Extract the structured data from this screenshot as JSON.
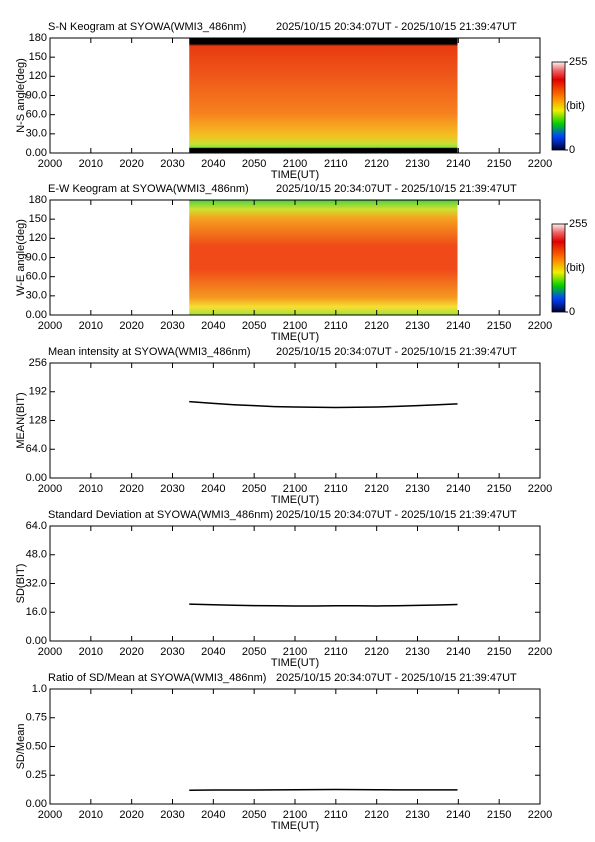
{
  "chart_data": [
    {
      "type": "keogram",
      "title": "S-N Keogram at SYOWA(WMI3_486nm)",
      "subtitle": "2025/10/15 20:34:07UT - 2025/10/15 21:39:47UT",
      "xlabel": "TIME(UT)",
      "ylabel": "N-S angle(deg)",
      "xlim": [
        1200,
        1320
      ],
      "xticks": [
        {
          "value": 1200,
          "label": "2000"
        },
        {
          "value": 1210,
          "label": "2010"
        },
        {
          "value": 1220,
          "label": "2020"
        },
        {
          "value": 1230,
          "label": "2030"
        },
        {
          "value": 1240,
          "label": "2040"
        },
        {
          "value": 1250,
          "label": "2050"
        },
        {
          "value": 1260,
          "label": "2100"
        },
        {
          "value": 1270,
          "label": "2110"
        },
        {
          "value": 1280,
          "label": "2120"
        },
        {
          "value": 1290,
          "label": "2130"
        },
        {
          "value": 1300,
          "label": "2140"
        },
        {
          "value": 1310,
          "label": "2150"
        },
        {
          "value": 1320,
          "label": "2200"
        }
      ],
      "ylim": [
        0,
        180
      ],
      "yticks": [
        {
          "value": 0,
          "label": "0.00"
        },
        {
          "value": 30,
          "label": "30.0"
        },
        {
          "value": 60,
          "label": "60.0"
        },
        {
          "value": 90,
          "label": "90.0"
        },
        120,
        150,
        180
      ],
      "x": [
        1234.1,
        1299.8
      ],
      "colorbar": {
        "lim": [
          0,
          255
        ],
        "ticks": [
          0,
          255
        ],
        "label": "(bit)"
      }
    },
    {
      "type": "keogram",
      "title": "E-W Keogram at SYOWA(WMI3_486nm)",
      "subtitle": "2025/10/15 20:34:07UT - 2025/10/15 21:39:47UT",
      "xlabel": "TIME(UT)",
      "ylabel": "W-E angle(deg)",
      "xlim": [
        1200,
        1320
      ],
      "xticks": [
        {
          "value": 1200,
          "label": "2000"
        },
        {
          "value": 1210,
          "label": "2010"
        },
        {
          "value": 1220,
          "label": "2020"
        },
        {
          "value": 1230,
          "label": "2030"
        },
        {
          "value": 1240,
          "label": "2040"
        },
        {
          "value": 1250,
          "label": "2050"
        },
        {
          "value": 1260,
          "label": "2100"
        },
        {
          "value": 1270,
          "label": "2110"
        },
        {
          "value": 1280,
          "label": "2120"
        },
        {
          "value": 1290,
          "label": "2130"
        },
        {
          "value": 1300,
          "label": "2140"
        },
        {
          "value": 1310,
          "label": "2150"
        },
        {
          "value": 1320,
          "label": "2200"
        }
      ],
      "ylim": [
        0,
        180
      ],
      "yticks": [
        {
          "value": 0,
          "label": "0.00"
        },
        {
          "value": 30,
          "label": "30.0"
        },
        {
          "value": 60,
          "label": "60.0"
        },
        {
          "value": 90,
          "label": "90.0"
        },
        120,
        150,
        180
      ],
      "x": [
        1234.1,
        1299.8
      ],
      "colorbar": {
        "lim": [
          0,
          255
        ],
        "ticks": [
          0,
          255
        ],
        "label": "(bit)"
      }
    },
    {
      "type": "line",
      "title": "Mean intensity at SYOWA(WMI3_486nm)",
      "subtitle": "2025/10/15 20:34:07UT - 2025/10/15 21:39:47UT",
      "xlabel": "TIME(UT)",
      "ylabel": "MEAN(BIT)",
      "xlim": [
        1200,
        1320
      ],
      "xticks": [
        {
          "value": 1200,
          "label": "2000"
        },
        {
          "value": 1210,
          "label": "2010"
        },
        {
          "value": 1220,
          "label": "2020"
        },
        {
          "value": 1230,
          "label": "2030"
        },
        {
          "value": 1240,
          "label": "2040"
        },
        {
          "value": 1250,
          "label": "2050"
        },
        {
          "value": 1260,
          "label": "2100"
        },
        {
          "value": 1270,
          "label": "2110"
        },
        {
          "value": 1280,
          "label": "2120"
        },
        {
          "value": 1290,
          "label": "2130"
        },
        {
          "value": 1300,
          "label": "2140"
        },
        {
          "value": 1310,
          "label": "2150"
        },
        {
          "value": 1320,
          "label": "2200"
        }
      ],
      "ylim": [
        0,
        256
      ],
      "yticks": [
        {
          "value": 0,
          "label": "0.00"
        },
        {
          "value": 64,
          "label": "64.0"
        },
        128,
        192,
        256
      ],
      "color": "#000000",
      "x": [
        1234.1,
        1240,
        1245,
        1250,
        1255,
        1260,
        1265,
        1270,
        1275,
        1280,
        1285,
        1290,
        1295,
        1299.8
      ],
      "values": [
        170,
        166,
        163,
        161,
        159,
        158,
        157.5,
        157,
        157.5,
        158,
        159.5,
        161,
        163,
        165
      ]
    },
    {
      "type": "line",
      "title": "Standard Deviation at SYOWA(WMI3_486nm)",
      "subtitle": "2025/10/15 20:34:07UT - 2025/10/15 21:39:47UT",
      "xlabel": "TIME(UT)",
      "ylabel": "SD(BIT)",
      "xlim": [
        1200,
        1320
      ],
      "xticks": [
        {
          "value": 1200,
          "label": "2000"
        },
        {
          "value": 1210,
          "label": "2010"
        },
        {
          "value": 1220,
          "label": "2020"
        },
        {
          "value": 1230,
          "label": "2030"
        },
        {
          "value": 1240,
          "label": "2040"
        },
        {
          "value": 1250,
          "label": "2050"
        },
        {
          "value": 1260,
          "label": "2100"
        },
        {
          "value": 1270,
          "label": "2110"
        },
        {
          "value": 1280,
          "label": "2120"
        },
        {
          "value": 1290,
          "label": "2130"
        },
        {
          "value": 1300,
          "label": "2140"
        },
        {
          "value": 1310,
          "label": "2150"
        },
        {
          "value": 1320,
          "label": "2200"
        }
      ],
      "ylim": [
        0,
        64
      ],
      "yticks": [
        {
          "value": 0,
          "label": "0.00"
        },
        {
          "value": 16,
          "label": "16.0"
        },
        {
          "value": 32,
          "label": "32.0"
        },
        {
          "value": 48,
          "label": "48.0"
        },
        {
          "value": 64,
          "label": "64.0"
        }
      ],
      "color": "#000000",
      "x": [
        1234.1,
        1240,
        1245,
        1250,
        1255,
        1260,
        1265,
        1270,
        1275,
        1280,
        1285,
        1290,
        1295,
        1299.8
      ],
      "values": [
        20.5,
        20.2,
        19.9,
        19.7,
        19.6,
        19.5,
        19.5,
        19.6,
        19.6,
        19.5,
        19.6,
        19.8,
        20.0,
        20.3
      ]
    },
    {
      "type": "line",
      "title": "Ratio of SD/Mean at SYOWA(WMI3_486nm)",
      "subtitle": "2025/10/15 20:34:07UT - 2025/10/15 21:39:47UT",
      "xlabel": "TIME(UT)",
      "ylabel": "SD/Mean",
      "xlim": [
        1200,
        1320
      ],
      "xticks": [
        {
          "value": 1200,
          "label": "2000"
        },
        {
          "value": 1210,
          "label": "2010"
        },
        {
          "value": 1220,
          "label": "2020"
        },
        {
          "value": 1230,
          "label": "2030"
        },
        {
          "value": 1240,
          "label": "2040"
        },
        {
          "value": 1250,
          "label": "2050"
        },
        {
          "value": 1260,
          "label": "2100"
        },
        {
          "value": 1270,
          "label": "2110"
        },
        {
          "value": 1280,
          "label": "2120"
        },
        {
          "value": 1290,
          "label": "2130"
        },
        {
          "value": 1300,
          "label": "2140"
        },
        {
          "value": 1310,
          "label": "2150"
        },
        {
          "value": 1320,
          "label": "2200"
        }
      ],
      "ylim": [
        0,
        1
      ],
      "yticks": [
        {
          "value": 0,
          "label": "0.00"
        },
        0.25,
        {
          "value": 0.5,
          "label": "0.50"
        },
        0.75,
        {
          "value": 1,
          "label": "1.0"
        }
      ],
      "color": "#000000",
      "x": [
        1234.1,
        1240,
        1245,
        1250,
        1255,
        1260,
        1265,
        1270,
        1275,
        1280,
        1285,
        1290,
        1295,
        1299.8
      ],
      "values": [
        0.12,
        0.122,
        0.122,
        0.122,
        0.123,
        0.124,
        0.125,
        0.126,
        0.125,
        0.124,
        0.123,
        0.123,
        0.123,
        0.123
      ]
    }
  ]
}
